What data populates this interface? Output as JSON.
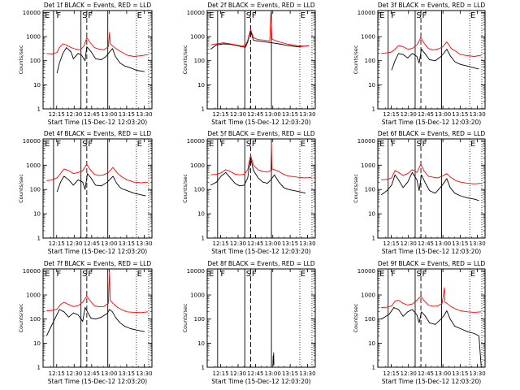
{
  "style": {
    "events_color": "#000000",
    "lld_color": "#ff0000",
    "frame_color": "#000000"
  },
  "chart_data": [
    {
      "type": "line",
      "title": "Det 1f BLACK = Events, RED = LLD",
      "xlabel": "Start Time (15-Dec-12 12:03:20)",
      "ylabel": "Counts/sec",
      "xticks": [
        "12:15",
        "12:30",
        "12:45",
        "13:00",
        "13:15",
        "13:30"
      ],
      "yticks": [
        "1",
        "10",
        "100",
        "1000",
        "10000"
      ],
      "y_scale": "log",
      "markers": [
        "E",
        "F",
        "S",
        "F",
        "E"
      ],
      "series": [
        {
          "name": "Events",
          "color": "#000000",
          "x": [
            12.0,
            14.0,
            17.0,
            20.0,
            24.0,
            26.0,
            30.0,
            33.0,
            36.0,
            37.5,
            41.0,
            45.0,
            50.0,
            54.0,
            57.0,
            59.5,
            62.0,
            66.0,
            70.0,
            75.0,
            80.0,
            87.0
          ],
          "y": [
            30,
            80,
            200,
            350,
            230,
            120,
            200,
            170,
            100,
            380,
            240,
            120,
            110,
            150,
            230,
            320,
            150,
            80,
            60,
            50,
            40,
            35
          ]
        },
        {
          "name": "LLD",
          "color": "#ff0000",
          "x": [
            3.0,
            8.0,
            12.0,
            14.0,
            17.0,
            20.0,
            24.0,
            28.0,
            32.0,
            35.0,
            37.5,
            40.0,
            44.0,
            48.0,
            52.0,
            56.0,
            57.0,
            57.5,
            60.0,
            64.0,
            68.0,
            72.0,
            78.0,
            84.0,
            90.0
          ],
          "y": [
            200,
            190,
            220,
            350,
            500,
            450,
            350,
            300,
            280,
            400,
            900,
            600,
            350,
            300,
            280,
            380,
            1500,
            500,
            400,
            280,
            220,
            170,
            150,
            160,
            180
          ]
        }
      ]
    },
    {
      "type": "line",
      "title": "Det 2f BLACK = Events, RED = LLD",
      "xlabel": "Start Time (15-Dec-12 12:03:20)",
      "ylabel": "Counts/sec",
      "xticks": [
        "12:15",
        "12:30",
        "12:45",
        "13:00",
        "13:15",
        "13:30"
      ],
      "yticks": [
        "1",
        "10",
        "100",
        "1000",
        "10000"
      ],
      "y_scale": "log",
      "markers": [
        "E",
        "F",
        "S",
        "F",
        "E"
      ],
      "series": [
        {
          "name": "Events",
          "color": "#000000",
          "x": [
            3.0,
            8.0,
            14.0,
            20.0,
            26.0,
            30.0,
            33.0,
            35.0,
            37.5,
            40.0,
            44.0,
            50.0,
            56.0,
            62.0,
            70.0,
            78.0,
            84.0,
            88.0
          ],
          "y": [
            300,
            450,
            500,
            480,
            420,
            380,
            360,
            600,
            1700,
            700,
            650,
            600,
            550,
            500,
            420,
            380,
            400,
            420
          ]
        },
        {
          "name": "LLD",
          "color": "#ff0000",
          "x": [
            3.0,
            8.0,
            14.0,
            20.0,
            26.0,
            30.0,
            33.0,
            35.0,
            37.5,
            40.0,
            44.0,
            50.0,
            54.0,
            55.0,
            56.0,
            58.0,
            62.0,
            70.0,
            78.0,
            84.0,
            88.0
          ],
          "y": [
            450,
            500,
            550,
            500,
            440,
            400,
            420,
            700,
            2000,
            900,
            750,
            700,
            650,
            10000,
            800,
            700,
            600,
            480,
            420,
            400,
            420
          ]
        }
      ]
    },
    {
      "type": "line",
      "title": "Det 3f BLACK = Events, RED = LLD",
      "xlabel": "Start Time (15-Dec-12 12:03:20)",
      "ylabel": "Counts/sec",
      "xticks": [
        "12:15",
        "12:30",
        "12:45",
        "13:00",
        "13:15",
        "13:30"
      ],
      "yticks": [
        "1",
        "10",
        "100",
        "1000",
        "10000"
      ],
      "y_scale": "log",
      "markers": [
        "E",
        "F",
        "S",
        "F",
        "E"
      ],
      "series": [
        {
          "name": "Events",
          "color": "#000000",
          "x": [
            12.0,
            15.0,
            18.0,
            22.0,
            26.0,
            30.0,
            34.0,
            36.0,
            38.0,
            41.0,
            45.0,
            50.0,
            55.0,
            58.0,
            60.0,
            63.0,
            67.0,
            72.0,
            78.0,
            84.0,
            88.0
          ],
          "y": [
            40,
            100,
            200,
            180,
            130,
            200,
            150,
            80,
            300,
            200,
            110,
            100,
            150,
            220,
            300,
            160,
            90,
            70,
            60,
            50,
            45
          ]
        },
        {
          "name": "LLD",
          "color": "#ff0000",
          "x": [
            3.0,
            8.0,
            12.0,
            15.0,
            18.0,
            22.0,
            26.0,
            30.0,
            34.0,
            37.5,
            40.0,
            44.0,
            48.0,
            52.0,
            56.0,
            60.0,
            64.0,
            68.0,
            72.0,
            78.0,
            84.0,
            90.0
          ],
          "y": [
            200,
            210,
            230,
            300,
            420,
            380,
            300,
            320,
            450,
            900,
            550,
            320,
            280,
            300,
            360,
            600,
            320,
            240,
            180,
            160,
            150,
            170
          ]
        }
      ]
    },
    {
      "type": "line",
      "title": "Det 4f BLACK = Events, RED = LLD",
      "xlabel": "Start Time (15-Dec-12 12:03:20)",
      "ylabel": "Counts/sec",
      "xticks": [
        "12:15",
        "12:30",
        "12:45",
        "13:00",
        "13:15",
        "13:30"
      ],
      "yticks": [
        "1",
        "10",
        "100",
        "1000",
        "10000"
      ],
      "y_scale": "log",
      "markers": [
        "E",
        "F",
        "S",
        "F",
        "E"
      ],
      "series": [
        {
          "name": "Events",
          "color": "#000000",
          "x": [
            12.0,
            15.0,
            18.0,
            22.0,
            26.0,
            30.0,
            34.0,
            36.0,
            38.0,
            41.0,
            45.0,
            50.0,
            55.0,
            58.0,
            60.0,
            63.0,
            67.0,
            72.0,
            78.0,
            84.0,
            88.0
          ],
          "y": [
            80,
            200,
            350,
            250,
            150,
            250,
            200,
            100,
            450,
            300,
            150,
            140,
            200,
            280,
            350,
            180,
            110,
            90,
            70,
            60,
            55
          ]
        },
        {
          "name": "LLD",
          "color": "#ff0000",
          "x": [
            3.0,
            8.0,
            12.0,
            15.0,
            18.0,
            22.0,
            26.0,
            30.0,
            34.0,
            37.5,
            40.0,
            44.0,
            48.0,
            52.0,
            56.0,
            60.0,
            64.0,
            68.0,
            72.0,
            78.0,
            84.0,
            90.0
          ],
          "y": [
            230,
            250,
            300,
            450,
            700,
            600,
            450,
            500,
            600,
            1100,
            700,
            420,
            380,
            400,
            500,
            800,
            450,
            320,
            250,
            200,
            190,
            200
          ]
        }
      ]
    },
    {
      "type": "line",
      "title": "Det 5f BLACK = Events, RED = LLD",
      "xlabel": "Start Time (15-Dec-12 12:03:20)",
      "ylabel": "Counts/sec",
      "xticks": [
        "12:15",
        "12:30",
        "12:45",
        "13:00",
        "13:15",
        "13:30"
      ],
      "yticks": [
        "1",
        "10",
        "100",
        "1000",
        "10000"
      ],
      "y_scale": "log",
      "markers": [
        "E",
        "F",
        "S",
        "F",
        "E"
      ],
      "series": [
        {
          "name": "Events",
          "color": "#000000",
          "x": [
            3.0,
            8.0,
            12.0,
            16.0,
            20.0,
            24.0,
            28.0,
            32.0,
            35.0,
            37.5,
            40.0,
            44.0,
            48.0,
            52.0,
            55.0,
            58.0,
            62.0,
            66.0,
            70.0,
            75.0,
            80.0,
            85.0
          ],
          "y": [
            150,
            200,
            350,
            500,
            300,
            180,
            140,
            150,
            300,
            2000,
            600,
            300,
            200,
            180,
            250,
            400,
            200,
            120,
            100,
            90,
            80,
            70
          ]
        },
        {
          "name": "LLD",
          "color": "#ff0000",
          "x": [
            3.0,
            8.0,
            12.0,
            16.0,
            20.0,
            24.0,
            28.0,
            32.0,
            35.0,
            37.5,
            40.0,
            44.0,
            48.0,
            52.0,
            55.0,
            55.5,
            56.0,
            58.0,
            62.0,
            66.0,
            70.0,
            78.0,
            84.0,
            90.0
          ],
          "y": [
            400,
            420,
            480,
            650,
            550,
            430,
            400,
            420,
            650,
            2500,
            1000,
            650,
            550,
            520,
            600,
            8000,
            700,
            650,
            550,
            420,
            360,
            320,
            300,
            310
          ]
        }
      ]
    },
    {
      "type": "line",
      "title": "Det 6f BLACK = Events, RED = LLD",
      "xlabel": "Start Time (15-Dec-12 12:03:20)",
      "ylabel": "Counts/sec",
      "xticks": [
        "12:15",
        "12:30",
        "12:45",
        "13:00",
        "13:15",
        "13:30"
      ],
      "yticks": [
        "1",
        "10",
        "100",
        "1000",
        "10000"
      ],
      "y_scale": "log",
      "markers": [
        "E",
        "F",
        "S",
        "F",
        "E"
      ],
      "series": [
        {
          "name": "Events",
          "color": "#000000",
          "x": [
            3.0,
            8.0,
            12.0,
            15.0,
            18.0,
            22.0,
            26.0,
            30.0,
            34.0,
            36.0,
            38.0,
            41.0,
            45.0,
            50.0,
            55.0,
            58.0,
            60.0,
            63.0,
            67.0,
            72.0,
            78.0,
            84.0,
            88.0
          ],
          "y": [
            60,
            90,
            150,
            400,
            250,
            120,
            200,
            500,
            250,
            90,
            400,
            200,
            90,
            70,
            130,
            200,
            280,
            120,
            70,
            55,
            45,
            40,
            35
          ]
        },
        {
          "name": "LLD",
          "color": "#ff0000",
          "x": [
            3.0,
            8.0,
            12.0,
            15.0,
            18.0,
            22.0,
            26.0,
            30.0,
            34.0,
            37.5,
            40.0,
            44.0,
            48.0,
            52.0,
            56.0,
            60.0,
            64.0,
            68.0,
            72.0,
            78.0,
            84.0,
            90.0
          ],
          "y": [
            250,
            260,
            300,
            600,
            500,
            380,
            450,
            650,
            500,
            1100,
            600,
            350,
            320,
            300,
            350,
            450,
            300,
            230,
            200,
            180,
            170,
            180
          ]
        }
      ]
    },
    {
      "type": "line",
      "title": "Det 7f BLACK = Events, RED = LLD",
      "xlabel": "Start Time (15-Dec-12 12:03:20)",
      "ylabel": "Counts/sec",
      "xticks": [
        "12:15",
        "12:30",
        "12:45",
        "13:00",
        "13:15",
        "13:30"
      ],
      "yticks": [
        "1",
        "10",
        "100",
        "1000",
        "10000"
      ],
      "y_scale": "log",
      "markers": [
        "E",
        "F",
        "S",
        "F",
        "E"
      ],
      "series": [
        {
          "name": "Events",
          "color": "#000000",
          "x": [
            3.0,
            6.0,
            10.0,
            14.0,
            18.0,
            22.0,
            26.0,
            30.0,
            34.0,
            36.0,
            38.0,
            41.0,
            45.0,
            50.0,
            55.0,
            57.0,
            59.5,
            62.0,
            66.0,
            70.0,
            75.0,
            80.0,
            87.0
          ],
          "y": [
            20,
            40,
            100,
            250,
            200,
            120,
            180,
            150,
            80,
            300,
            200,
            110,
            100,
            120,
            170,
            250,
            200,
            120,
            70,
            50,
            40,
            35,
            30
          ]
        },
        {
          "name": "LLD",
          "color": "#ff0000",
          "x": [
            3.0,
            8.0,
            12.0,
            15.0,
            18.0,
            22.0,
            26.0,
            30.0,
            34.0,
            37.5,
            40.0,
            44.0,
            48.0,
            52.0,
            56.0,
            57.0,
            57.5,
            60.0,
            64.0,
            68.0,
            72.0,
            78.0,
            84.0,
            90.0
          ],
          "y": [
            220,
            230,
            260,
            400,
            500,
            400,
            330,
            360,
            500,
            900,
            600,
            360,
            320,
            330,
            450,
            9000,
            600,
            450,
            300,
            240,
            200,
            190,
            185,
            200
          ]
        }
      ]
    },
    {
      "type": "line",
      "title": "Det 8f BLACK = Events, RED = LLD",
      "xlabel": "Start Time (15-Dec-12 12:03:20)",
      "ylabel": "Counts/sec",
      "xticks": [
        "12:15",
        "12:30",
        "12:45",
        "13:00",
        "13:15",
        "13:30"
      ],
      "yticks": [
        "1",
        "10",
        "100",
        "1000",
        "10000"
      ],
      "y_scale": "log",
      "markers": [
        "E",
        "F",
        "S",
        "F",
        "E"
      ],
      "series": [
        {
          "name": "Events",
          "color": "#000000",
          "x": [
            56.8,
            57.0,
            57.2,
            57.4,
            57.6
          ],
          "y": [
            1.2,
            3.0,
            1.5,
            4.0,
            1.2
          ]
        }
      ]
    },
    {
      "type": "line",
      "title": "Det 9f BLACK = Events, RED = LLD",
      "xlabel": "Start Time (15-Dec-12 12:03:20)",
      "ylabel": "Counts/sec",
      "xticks": [
        "12:15",
        "12:30",
        "12:45",
        "13:00",
        "13:15",
        "13:30"
      ],
      "yticks": [
        "1",
        "10",
        "100",
        "1000",
        "10000"
      ],
      "y_scale": "log",
      "markers": [
        "E",
        "F",
        "S",
        "F",
        "E"
      ],
      "series": [
        {
          "name": "Events",
          "color": "#000000",
          "x": [
            3.0,
            6.0,
            10.0,
            14.0,
            18.0,
            22.0,
            26.0,
            30.0,
            34.0,
            36.0,
            38.0,
            41.0,
            45.0,
            50.0,
            55.0,
            58.0,
            60.0,
            63.0,
            67.0,
            72.0,
            78.0,
            84.0,
            88.0,
            90.0
          ],
          "y": [
            100,
            120,
            160,
            300,
            250,
            130,
            200,
            250,
            150,
            70,
            200,
            140,
            70,
            60,
            100,
            150,
            220,
            100,
            50,
            40,
            30,
            25,
            20,
            1
          ]
        },
        {
          "name": "LLD",
          "color": "#ff0000",
          "x": [
            3.0,
            8.0,
            12.0,
            15.0,
            18.0,
            22.0,
            26.0,
            30.0,
            34.0,
            37.5,
            40.0,
            44.0,
            48.0,
            52.0,
            56.0,
            58.0,
            58.5,
            60.0,
            64.0,
            68.0,
            72.0,
            78.0,
            84.0,
            90.0
          ],
          "y": [
            300,
            310,
            350,
            550,
            600,
            450,
            380,
            420,
            600,
            900,
            600,
            380,
            340,
            350,
            450,
            2000,
            500,
            450,
            320,
            260,
            220,
            200,
            190,
            200
          ]
        }
      ]
    }
  ]
}
